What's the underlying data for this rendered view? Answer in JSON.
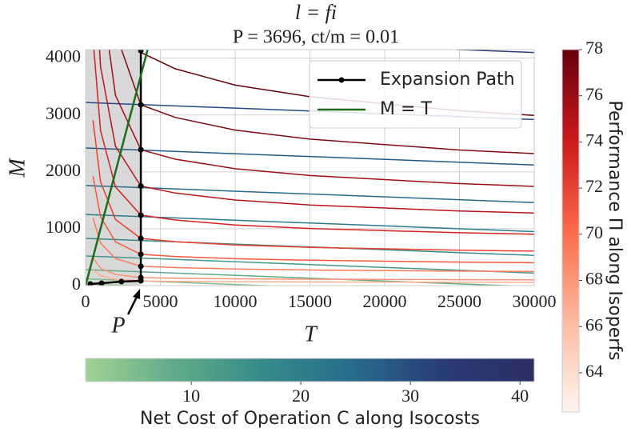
{
  "chart_data": {
    "type": "line",
    "title": "l = fi",
    "subtitle": "P = 3696, ct/m = 0.01",
    "xlabel": "T",
    "ylabel": "M",
    "xlim": [
      0,
      30000
    ],
    "ylim": [
      0,
      4150
    ],
    "xticks": [
      0,
      5000,
      10000,
      15000,
      20000,
      25000,
      30000
    ],
    "yticks": [
      0,
      1000,
      2000,
      3000,
      4000
    ],
    "grid": true,
    "legend": "upper right",
    "shade_color": "#d9d9d9",
    "annotation": {
      "text": "P",
      "x": 3696
    },
    "series": [
      {
        "name": "Expansion Path",
        "color": "#000000",
        "marker": true,
        "x": [
          320,
          1070,
          2400,
          3696,
          3696,
          3696,
          3696,
          3696,
          3696,
          3696,
          3696,
          3696,
          3696
        ],
        "values": [
          28,
          42,
          70,
          85,
          140,
          340,
          550,
          830,
          1240,
          1750,
          2390,
          3180,
          4130
        ]
      },
      {
        "name": "M = T",
        "color": "#1a6e1a",
        "marker": false,
        "x": [
          0,
          4150
        ],
        "values": [
          0,
          4150
        ]
      }
    ],
    "isoperf_x": [
      500,
      1000,
      2000,
      3696,
      6000,
      10000,
      15000,
      20000,
      25000,
      30000
    ],
    "isoperfs": [
      {
        "color": "#fcaf93",
        "values": [
          280,
          176,
          112,
          80,
          74,
          69,
          65,
          62,
          60,
          58
        ]
      },
      {
        "color": "#fc9474",
        "values": [
          490,
          308,
          196,
          140,
          130,
          120,
          113,
          109,
          105,
          102
        ]
      },
      {
        "color": "#fb7a5a",
        "values": [
          1190,
          748,
          476,
          340,
          316,
          292,
          275,
          265,
          255,
          248
        ]
      },
      {
        "color": "#f6583e",
        "values": [
          1925,
          1210,
          770,
          550,
          512,
          473,
          446,
          429,
          413,
          402
        ]
      },
      {
        "color": "#eb3c2d",
        "values": [
          2905,
          1826,
          1162,
          830,
          772,
          714,
          672,
          647,
          623,
          606
        ]
      },
      {
        "color": "#d52221",
        "values": [
          4340,
          2728,
          1736,
          1240,
          1153,
          1066,
          1004,
          967,
          930,
          905
        ]
      },
      {
        "color": "#bb1419",
        "values": [
          6125,
          3850,
          2450,
          1750,
          1628,
          1505,
          1418,
          1365,
          1313,
          1278
        ]
      },
      {
        "color": "#9f0e15",
        "values": [
          8365,
          5258,
          3346,
          2390,
          2223,
          2055,
          1936,
          1864,
          1793,
          1745
        ]
      },
      {
        "color": "#800a12",
        "values": [
          11130,
          6996,
          4452,
          3180,
          2957,
          2735,
          2576,
          2480,
          2385,
          2321
        ]
      },
      {
        "color": "#67000d",
        "values": [
          14350,
          9020,
          5740,
          4100,
          3813,
          3526,
          3321,
          3198,
          3075,
          2993
        ]
      }
    ],
    "isocost_x": [
      0,
      30000
    ],
    "isocosts": [
      {
        "color": "#9ccc8f",
        "values": [
          30,
          -270
        ]
      },
      {
        "color": "#7fbb8b",
        "values": [
          120,
          -180
        ]
      },
      {
        "color": "#5fab89",
        "values": [
          280,
          -20
        ]
      },
      {
        "color": "#45998a",
        "values": [
          520,
          220
        ]
      },
      {
        "color": "#358a8a",
        "values": [
          830,
          530
        ]
      },
      {
        "color": "#2c7a8a",
        "values": [
          1250,
          950
        ]
      },
      {
        "color": "#266b8b",
        "values": [
          1760,
          1460
        ]
      },
      {
        "color": "#225a89",
        "values": [
          2420,
          2120
        ]
      },
      {
        "color": "#234a84",
        "values": [
          3220,
          2920
        ]
      },
      {
        "color": "#2a3a75",
        "values": [
          4400,
          4100
        ]
      }
    ],
    "colorbars": [
      {
        "label": "Net Cost of Operation C along Isocosts",
        "lim": [
          0.36,
          41.3
        ],
        "ticks": [
          10,
          20,
          30,
          40
        ],
        "colors": [
          "#a1d294",
          "#5fab89",
          "#358a8a",
          "#266b8b",
          "#2a3a75",
          "#2b2f63"
        ]
      },
      {
        "label": "Performance Π along Isoperfs",
        "lim": [
          62.3,
          78
        ],
        "ticks": [
          64,
          66,
          68,
          70,
          72,
          74,
          76,
          78
        ],
        "colors": [
          "#fff5f0",
          "#fcbba1",
          "#fb6a4a",
          "#cb181d",
          "#67000d"
        ]
      }
    ]
  }
}
